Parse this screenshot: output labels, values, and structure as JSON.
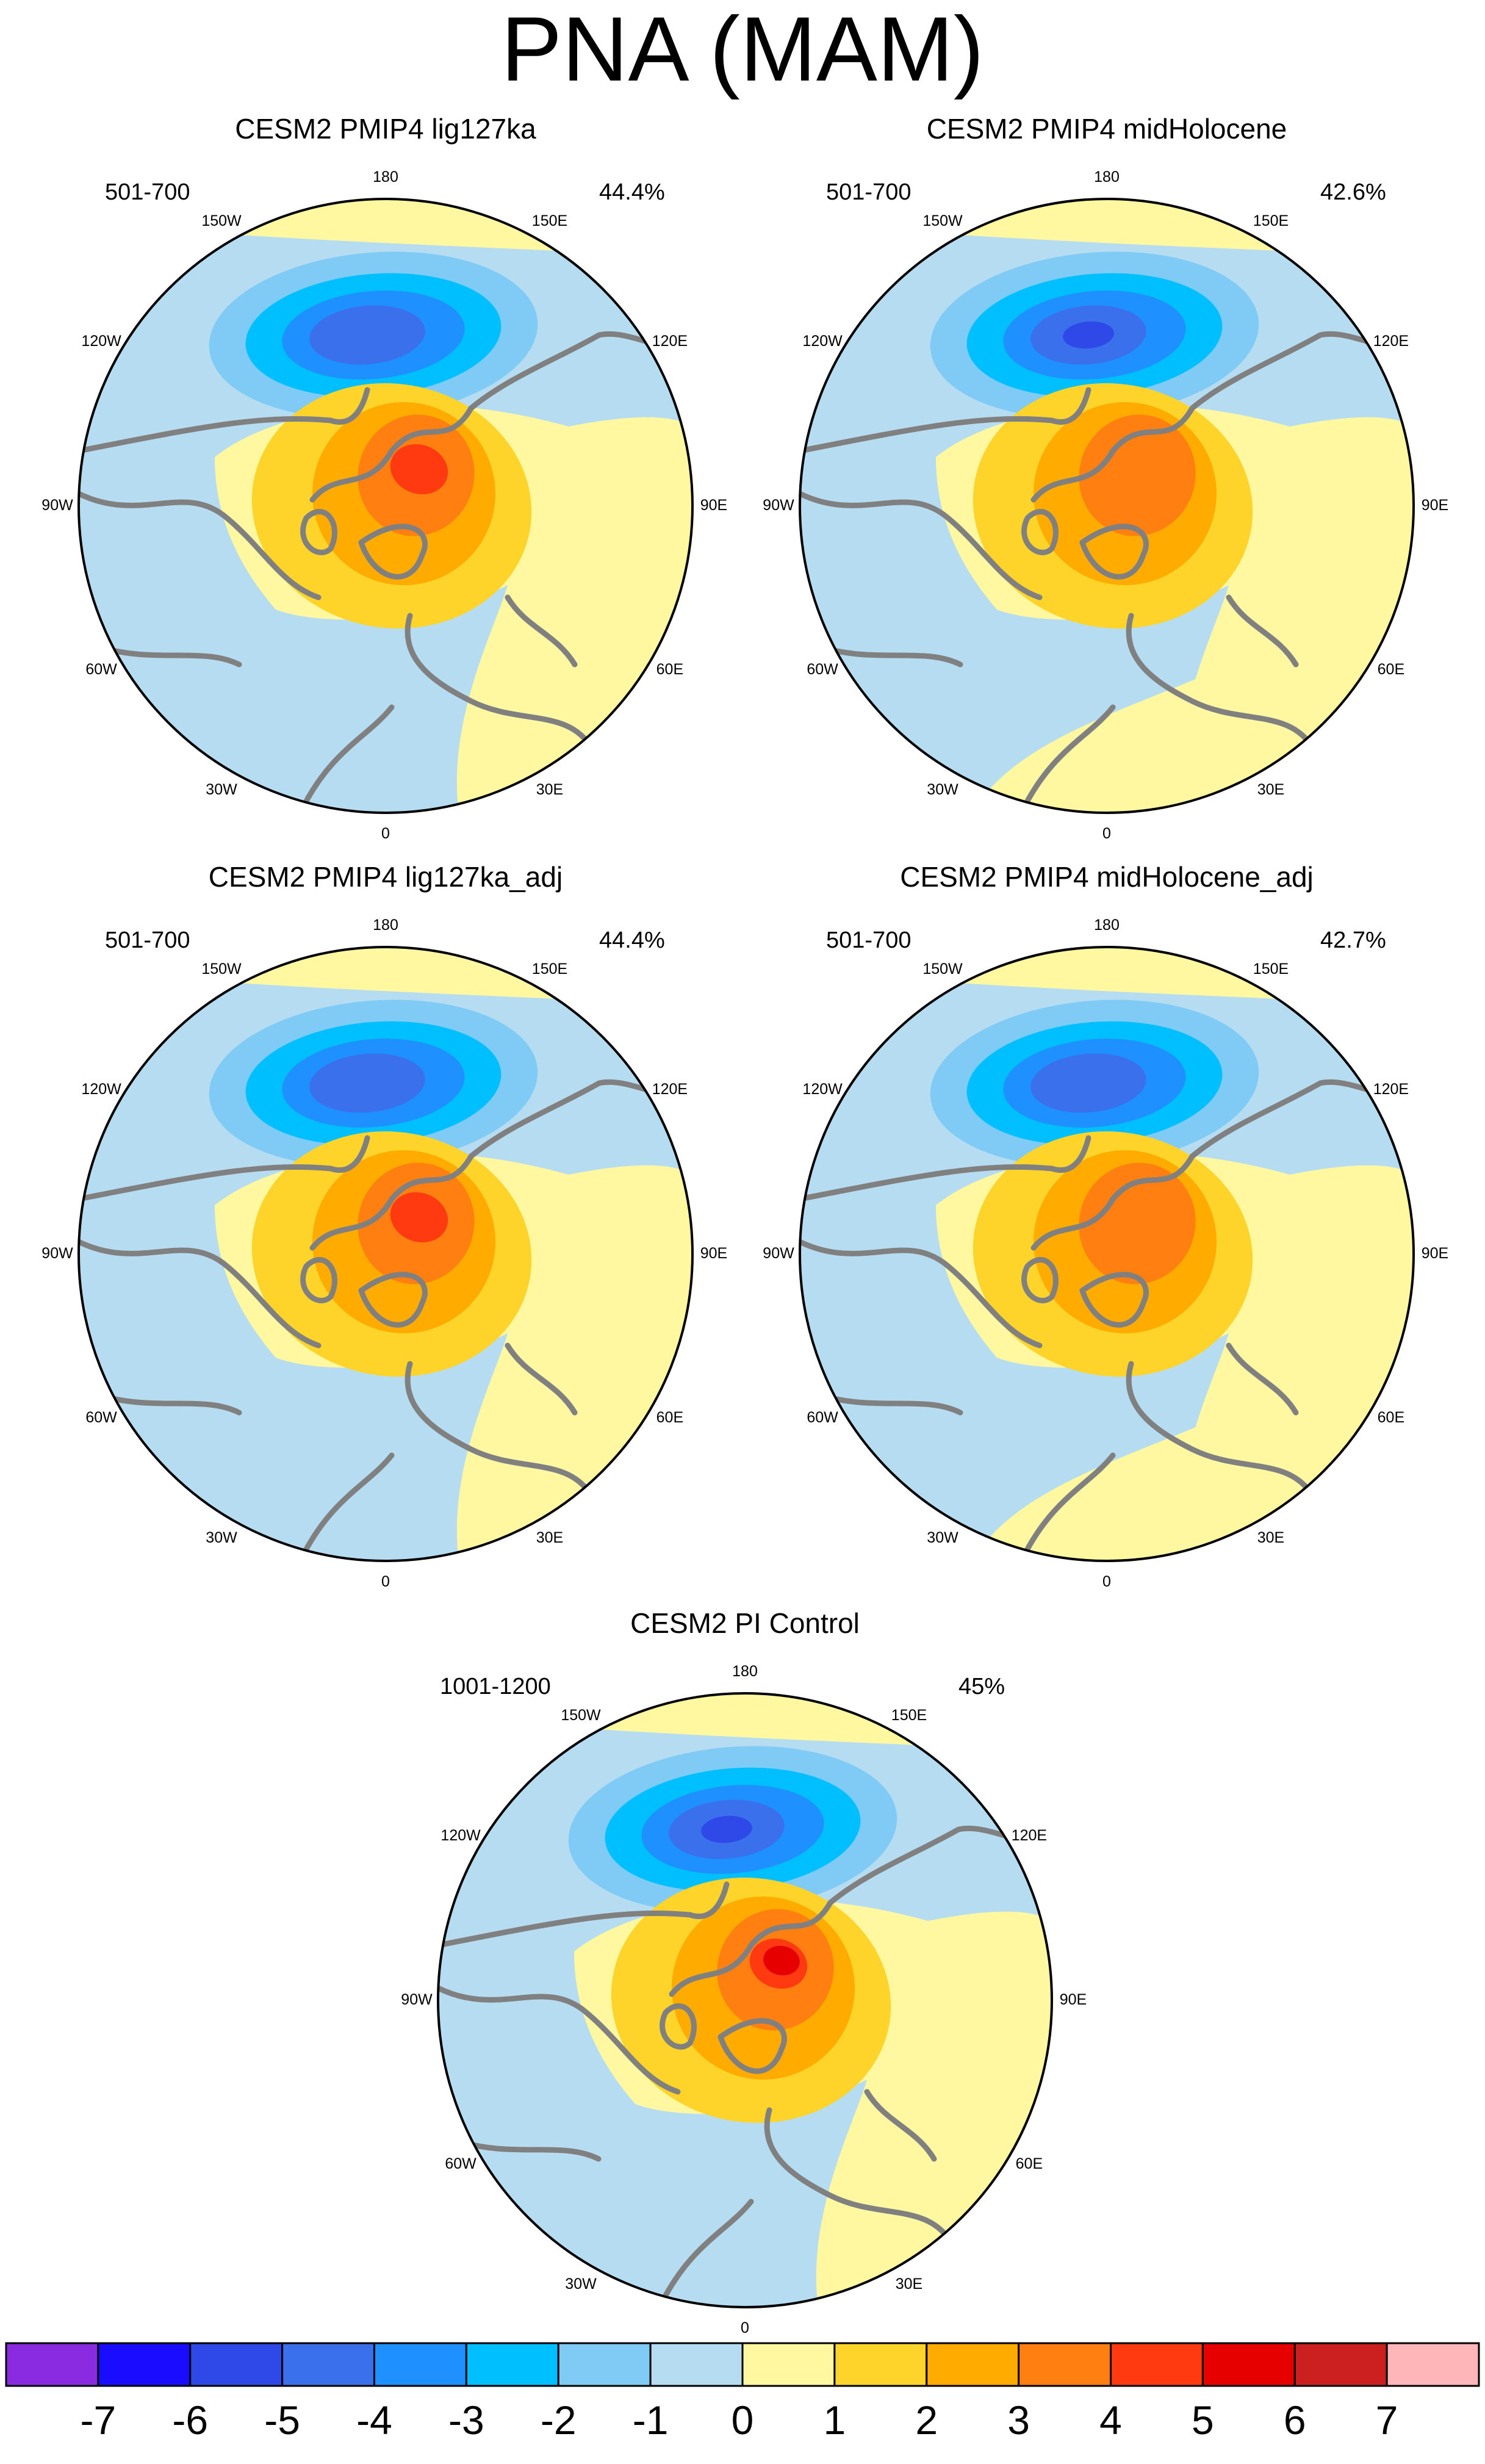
{
  "title": "PNA (MAM)",
  "panels": [
    {
      "id": "p1",
      "title": "CESM2 PMIP4 lig127ka",
      "years": "501-700",
      "variance": "44.4%"
    },
    {
      "id": "p2",
      "title": "CESM2 PMIP4 midHolocene",
      "years": "501-700",
      "variance": "42.6%"
    },
    {
      "id": "p3",
      "title": "CESM2 PMIP4 lig127ka_adj",
      "years": "501-700",
      "variance": "44.4%"
    },
    {
      "id": "p4",
      "title": "CESM2 PMIP4 midHolocene_adj",
      "years": "501-700",
      "variance": "42.7%"
    },
    {
      "id": "p5",
      "title": "CESM2 PI Control",
      "years": "1001-1200",
      "variance": "45%"
    }
  ],
  "longitude_labels": [
    "180",
    "150E",
    "120E",
    "90E",
    "60E",
    "30E",
    "0",
    "30W",
    "60W",
    "90W",
    "120W",
    "150W"
  ],
  "colorbar": {
    "labels": [
      "-7",
      "-6",
      "-5",
      "-4",
      "-3",
      "-2",
      "-1",
      "0",
      "1",
      "2",
      "3",
      "4",
      "5",
      "6",
      "7"
    ],
    "colors": [
      "#8a2be2",
      "#1a0dff",
      "#2f49e8",
      "#3a70ec",
      "#1e90ff",
      "#00bfff",
      "#7fcbf5",
      "#b6dcf2",
      "#fff8a0",
      "#ffd42a",
      "#ffab00",
      "#ff7f10",
      "#ff3a10",
      "#e60000",
      "#cc1f1f",
      "#ffb6b9"
    ]
  },
  "colors": {
    "coastline": "#808080",
    "map_border": "#000000"
  }
}
